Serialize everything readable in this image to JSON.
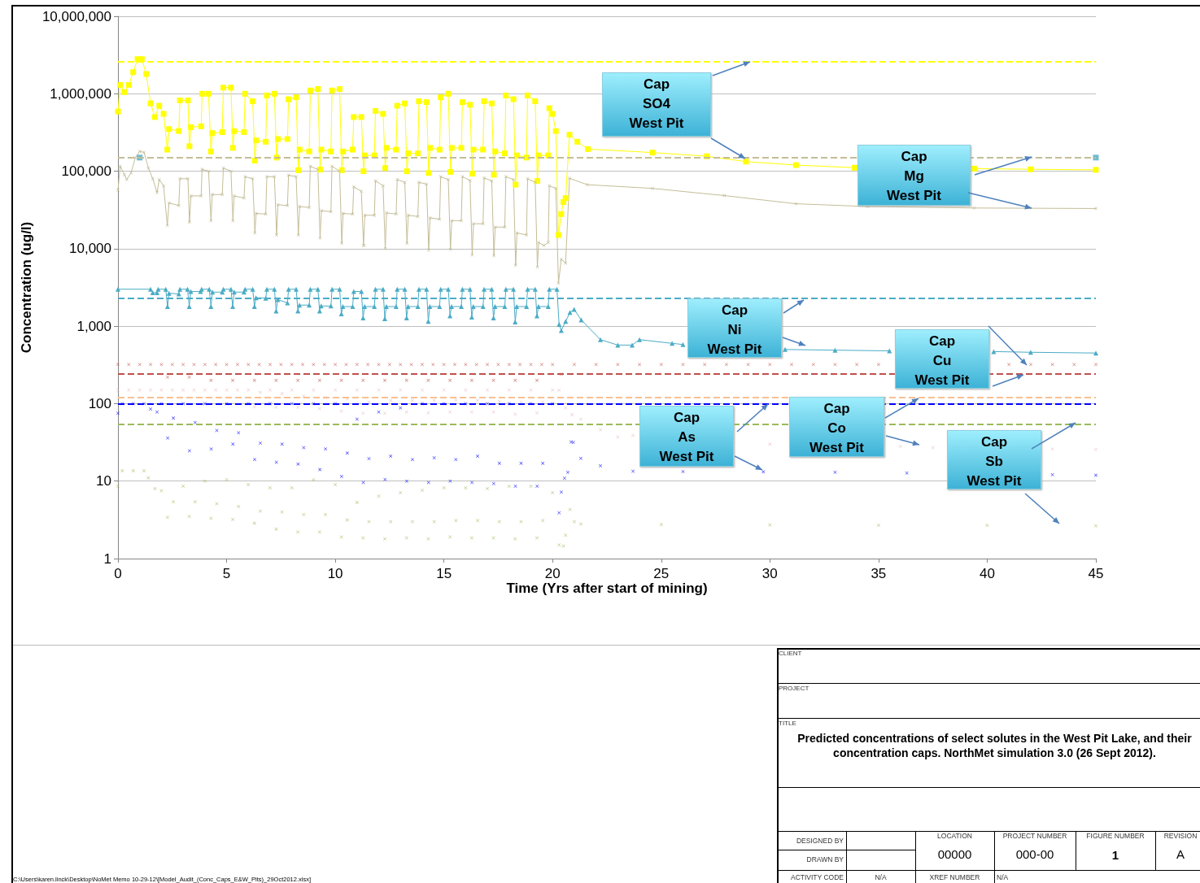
{
  "chart_data": {
    "type": "line",
    "title": "Predicted concentrations of select solutes in the West Pit Lake, and their concentration caps.  NorthMet simulation 3.0 (26 Sept 2012).",
    "xlabel": "Time (Yrs after start of mining)",
    "ylabel": "Concentration (ug/l)",
    "xlim": [
      0,
      45
    ],
    "xticks": [
      0,
      5,
      10,
      15,
      20,
      25,
      30,
      35,
      40,
      45
    ],
    "ylim": [
      1,
      10000000
    ],
    "yticks": [
      1,
      10,
      100,
      {
        "value": 1000,
        "label": "1,000"
      },
      {
        "value": 10000,
        "label": "10,000"
      },
      {
        "value": 100000,
        "label": "100,000"
      },
      {
        "value": 1000000,
        "label": "1,000,000"
      },
      {
        "value": 10000000,
        "label": "10,000,000"
      }
    ],
    "log": true,
    "grid": "y",
    "ref_lines": [
      {
        "axis": "y",
        "value": 2600000,
        "color": "#ffff00",
        "line_style": "dashed"
      },
      {
        "axis": "y",
        "value": 150000,
        "color": "#c4bd97",
        "line_style": "dashed"
      },
      {
        "axis": "y",
        "value": 2300,
        "color": "#4bacc6",
        "line_style": "dashed"
      },
      {
        "axis": "y",
        "value": 240,
        "color": "#c0504d",
        "line_style": "dashed"
      },
      {
        "axis": "y",
        "value": 120,
        "color": "#fac090",
        "line_style": "dashed"
      },
      {
        "axis": "y",
        "value": 100,
        "color": "#0000ff",
        "line_style": "dashed"
      },
      {
        "axis": "y",
        "value": 54,
        "color": "#9bbb59",
        "line_style": "dashed"
      }
    ],
    "annotations": [
      "Cap\nSO4\nWest Pit",
      "Cap\nMg\nWest Pit",
      "Cap\nNi\nWest Pit",
      "Cap\nCu\nWest Pit",
      "Cap\nAs\nWest Pit",
      "Cap\nCo\nWest Pit",
      "Cap\nSb\nWest Pit",
      "CLIENT",
      "PROJECT",
      "TITLE",
      "DESIGNED BY",
      "DRAWN BY",
      "LOCATION",
      "00000",
      "PROJECT NUMBER",
      "000-00",
      "FIGURE NUMBER",
      "1",
      "REVISION",
      "A",
      "ACTIVITY CODE",
      "N/A",
      "XREF NUMBER",
      "N/A",
      "C:\\Users\\karen.linck\\Desktop\\NoMet Memo 10-29-12\\[Model_Audit_(Conc_Caps_E&W_Pits)_29Oct2012.xlsx]"
    ],
    "series": [
      {
        "color": "#ffff00",
        "marker": "square",
        "x": [
          0,
          0.1,
          0.3,
          0.5,
          0.7,
          0.9,
          1.1,
          1.3,
          1.5,
          1.7,
          1.9,
          2.1,
          2.27,
          2.35,
          2.8,
          2.85,
          3.22,
          3.29,
          3.36,
          3.83,
          3.87,
          4.17,
          4.28,
          4.34,
          4.8,
          4.85,
          5.2,
          5.29,
          5.35,
          5.8,
          5.85,
          6.2,
          6.3,
          6.36,
          6.8,
          6.85,
          7.2,
          7.3,
          7.36,
          7.8,
          7.85,
          8.2,
          8.3,
          8.36,
          8.8,
          8.85,
          9.2,
          9.3,
          9.36,
          9.8,
          9.85,
          10.2,
          10.3,
          10.36,
          10.8,
          10.85,
          11.2,
          11.3,
          11.36,
          11.8,
          11.85,
          12.2,
          12.3,
          12.36,
          12.8,
          12.85,
          13.2,
          13.3,
          13.36,
          13.8,
          13.85,
          14.2,
          14.3,
          14.36,
          14.8,
          14.85,
          15.2,
          15.3,
          15.36,
          15.8,
          15.85,
          16.2,
          16.3,
          16.36,
          16.8,
          16.85,
          17.2,
          17.3,
          17.36,
          17.8,
          17.85,
          18.2,
          18.3,
          18.36,
          18.8,
          18.85,
          19.2,
          19.3,
          19.36,
          19.8,
          19.85,
          20,
          20.15,
          20.27,
          20.4,
          20.5,
          20.6,
          20.78,
          21.14,
          21.63,
          24.6,
          27.1,
          28.9,
          31.2,
          33.9,
          36,
          39.4,
          42,
          45
        ],
        "values": [
          590000,
          1300000,
          1050000,
          1300000,
          1900000,
          2800000,
          2800000,
          1800000,
          750000,
          500000,
          700000,
          550000,
          190000,
          350000,
          330000,
          820000,
          820000,
          210000,
          370000,
          380000,
          1000000,
          1000000,
          180000,
          310000,
          320000,
          1200000,
          1200000,
          200000,
          330000,
          320000,
          1000000,
          800000,
          137000,
          250000,
          240000,
          950000,
          1000000,
          150000,
          260000,
          260000,
          850000,
          900000,
          103000,
          190000,
          180000,
          1100000,
          1150000,
          105000,
          190000,
          180000,
          1100000,
          1150000,
          103000,
          180000,
          190000,
          500000,
          500000,
          100000,
          160000,
          160000,
          600000,
          550000,
          110000,
          200000,
          190000,
          700000,
          750000,
          100000,
          170000,
          170000,
          800000,
          780000,
          95000,
          200000,
          190000,
          900000,
          1000000,
          98000,
          200000,
          200000,
          780000,
          720000,
          93000,
          190000,
          190000,
          800000,
          750000,
          90000,
          180000,
          170000,
          950000,
          850000,
          67000,
          160000,
          150000,
          950000,
          800000,
          75000,
          160000,
          160000,
          650000,
          550000,
          330000,
          15000,
          28000,
          40000,
          45000,
          296000,
          240000,
          193000,
          174000,
          156000,
          133000,
          120000,
          111000,
          null,
          108000,
          106000,
          104000
        ]
      },
      {
        "color": "#c4bd97",
        "marker": "cross",
        "x": [
          0,
          0.1,
          0.3,
          0.4,
          0.6,
          0.8,
          1.0,
          1.2,
          1.4,
          1.6,
          1.8,
          1.9,
          2.1,
          2.27,
          2.35,
          2.8,
          2.85,
          3.22,
          3.29,
          3.36,
          3.83,
          3.87,
          4.17,
          4.28,
          4.34,
          4.8,
          4.85,
          5.2,
          5.29,
          5.35,
          5.8,
          5.85,
          6.2,
          6.3,
          6.36,
          6.8,
          6.85,
          7.2,
          7.3,
          7.36,
          7.8,
          7.85,
          8.2,
          8.3,
          8.36,
          8.8,
          8.85,
          9.2,
          9.3,
          9.36,
          9.8,
          9.85,
          10.2,
          10.3,
          10.36,
          10.8,
          10.85,
          11.2,
          11.3,
          11.32,
          11.36,
          11.8,
          11.85,
          12.2,
          12.3,
          12.36,
          12.8,
          12.85,
          13.2,
          13.3,
          13.36,
          13.8,
          13.85,
          14.2,
          14.3,
          14.36,
          14.8,
          14.85,
          15.2,
          15.3,
          15.36,
          15.8,
          15.85,
          16.2,
          16.3,
          16.36,
          16.8,
          16.85,
          17.2,
          17.3,
          17.36,
          17.8,
          17.85,
          18.2,
          18.3,
          18.36,
          18.8,
          18.85,
          19.2,
          19.3,
          19.36,
          19.6,
          19.8,
          19.85,
          20.15,
          20.27,
          20.4,
          20.6,
          20.78,
          21.6,
          24.6,
          27.9,
          31.2,
          34.5,
          39.4,
          45
        ],
        "values": [
          57000,
          116000,
          90000,
          78000,
          95000,
          150000,
          180000,
          175000,
          110000,
          80000,
          53000,
          78000,
          65000,
          20000,
          39000,
          36000,
          80000,
          80000,
          22000,
          48000,
          48000,
          106000,
          100000,
          23000,
          50000,
          50000,
          110000,
          100000,
          23000,
          48000,
          45000,
          85000,
          80000,
          16000,
          28500,
          28000,
          85000,
          85000,
          15000,
          37000,
          36000,
          89000,
          85000,
          15000,
          35000,
          34000,
          116000,
          105000,
          13700,
          31000,
          30000,
          116000,
          100000,
          11700,
          28500,
          28000,
          63000,
          55000,
          11000,
          11000,
          27000,
          27000,
          75000,
          65000,
          10000,
          29000,
          28000,
          78000,
          72000,
          11700,
          27000,
          26000,
          72000,
          68000,
          9600,
          25000,
          24000,
          85000,
          78000,
          9800,
          23000,
          23000,
          85000,
          76000,
          8300,
          21000,
          21000,
          82000,
          75000,
          8100,
          19000,
          19000,
          85000,
          78000,
          6100,
          16000,
          15000,
          80000,
          72000,
          5800,
          12000,
          11000,
          12000,
          65000,
          60000,
          3600,
          7300,
          6500,
          81000,
          67000,
          60000,
          48500,
          38000,
          35000,
          33500,
          33000
        ]
      },
      {
        "color": "#4bacc6",
        "marker": "triangle",
        "x": [
          0,
          1.5,
          1.6,
          1.8,
          1.85,
          2.2,
          2.28,
          2.35,
          2.8,
          2.85,
          3.2,
          3.28,
          3.35,
          3.8,
          3.85,
          4.2,
          4.28,
          4.35,
          4.8,
          4.85,
          5.2,
          5.28,
          5.35,
          5.8,
          5.85,
          6.2,
          6.28,
          6.35,
          6.8,
          6.85,
          7.2,
          7.28,
          7.35,
          7.8,
          7.85,
          8.2,
          8.28,
          8.35,
          8.8,
          8.85,
          9.2,
          9.28,
          9.35,
          9.8,
          9.85,
          10.2,
          10.28,
          10.35,
          10.8,
          10.85,
          11.2,
          11.28,
          11.35,
          11.8,
          11.85,
          12.2,
          12.28,
          12.35,
          12.8,
          12.85,
          13.2,
          13.28,
          13.35,
          13.8,
          13.85,
          14.2,
          14.28,
          14.35,
          14.8,
          14.85,
          15.2,
          15.28,
          15.35,
          15.8,
          15.85,
          16.2,
          16.28,
          16.35,
          16.8,
          16.85,
          17.2,
          17.28,
          17.35,
          17.8,
          17.85,
          18.2,
          18.28,
          18.35,
          18.8,
          18.85,
          19.2,
          19.28,
          19.35,
          19.8,
          19.85,
          20.2,
          20.3,
          20.4,
          20.6,
          20.8,
          20.99,
          21.32,
          22.2,
          23,
          23.66,
          24,
          25.5,
          26,
          28,
          30.7,
          33,
          35.5,
          38,
          40.3,
          42,
          45
        ],
        "values": [
          3000,
          3000,
          2700,
          2700,
          3000,
          3000,
          1790,
          2660,
          2600,
          3000,
          3000,
          1790,
          2800,
          2800,
          3000,
          3000,
          1790,
          2750,
          2750,
          3000,
          3000,
          1790,
          2750,
          2750,
          3000,
          3000,
          1790,
          2330,
          2300,
          3000,
          3000,
          1570,
          2200,
          2000,
          3000,
          3000,
          1570,
          1870,
          1870,
          3000,
          3000,
          1570,
          1820,
          1820,
          3000,
          3000,
          1440,
          1790,
          1790,
          2800,
          2800,
          1280,
          1790,
          1790,
          3000,
          3000,
          1250,
          1790,
          1790,
          3000,
          3000,
          1280,
          1790,
          1790,
          3000,
          3000,
          1150,
          1790,
          1790,
          3000,
          3000,
          1360,
          1790,
          1790,
          3000,
          3000,
          1310,
          1790,
          1790,
          3000,
          3000,
          1280,
          1790,
          1790,
          3000,
          3000,
          1130,
          1790,
          1790,
          3000,
          3000,
          1360,
          1790,
          1790,
          3000,
          3000,
          1050,
          880,
          1150,
          1500,
          1650,
          1200,
          670,
          570,
          570,
          670,
          600,
          580,
          null,
          500,
          490,
          480,
          null,
          470,
          460,
          450
        ]
      },
      {
        "type": "scatter",
        "color": "#c0504d",
        "marker": "cross",
        "x": [
          0,
          0.5,
          1,
          1.5,
          2,
          2.5,
          3,
          3.5,
          4,
          4.5,
          5,
          5.5,
          6,
          6.5,
          7,
          7.5,
          8,
          8.5,
          9,
          9.5,
          10,
          10.5,
          11,
          11.5,
          12,
          12.5,
          13,
          13.5,
          14,
          14.5,
          15,
          15.5,
          16,
          16.5,
          17,
          17.5,
          18,
          18.5,
          19,
          19.5,
          20,
          2.28,
          3.28,
          4.28,
          5.28,
          6.28,
          7.28,
          8.28,
          9.28,
          10.28,
          11.28,
          12.28,
          13.28,
          14.28,
          15.28,
          16.28,
          17.28,
          18.28,
          19.28,
          20.4,
          21,
          22,
          23,
          24,
          25,
          26,
          27,
          28,
          29,
          30,
          31,
          32,
          33,
          34,
          35,
          41,
          42,
          43,
          44,
          45
        ],
        "values": [
          320,
          320,
          320,
          320,
          320,
          320,
          320,
          320,
          320,
          320,
          320,
          320,
          320,
          320,
          320,
          320,
          320,
          320,
          320,
          320,
          320,
          320,
          320,
          320,
          320,
          320,
          320,
          320,
          320,
          320,
          320,
          320,
          320,
          320,
          320,
          320,
          320,
          320,
          320,
          320,
          320,
          220,
          220,
          200,
          200,
          200,
          200,
          200,
          200,
          200,
          200,
          200,
          200,
          200,
          200,
          200,
          200,
          200,
          200,
          240,
          320,
          320,
          320,
          320,
          320,
          320,
          320,
          320,
          320,
          320,
          320,
          320,
          320,
          320,
          320,
          320,
          320,
          320,
          320,
          320
        ]
      },
      {
        "type": "scatter",
        "color": "#e6b9b8",
        "marker": "cross",
        "x": [
          0,
          0.5,
          1,
          1.5,
          2,
          2.5,
          3,
          3.5,
          4,
          4.5,
          5,
          5.5,
          6,
          7,
          8,
          9,
          10,
          11,
          12,
          13,
          14,
          15,
          16,
          17,
          18,
          19,
          20,
          6.55,
          7.55,
          8.55,
          9.55,
          10.55,
          11.55,
          12.55,
          13.55,
          14.55,
          15.55,
          16.55,
          17.55,
          18.55,
          19.55,
          6.28,
          7.28,
          8.28,
          9.28,
          10.28,
          11.28,
          12.28,
          13.28,
          14.28,
          15.28,
          16.28,
          17.28,
          18.28,
          19.28,
          20.3,
          20.6,
          20.9,
          21.3,
          22.2,
          23,
          23.7,
          28.3,
          30,
          36,
          37.5,
          43,
          45
        ],
        "values": [
          150,
          150,
          150,
          150,
          150,
          150,
          150,
          150,
          150,
          150,
          150,
          150,
          150,
          150,
          150,
          150,
          150,
          150,
          150,
          150,
          150,
          150,
          150,
          150,
          150,
          150,
          150,
          140,
          135,
          125,
          120,
          115,
          105,
          110,
          110,
          110,
          112,
          110,
          106,
          105,
          105,
          91,
          90,
          90,
          86,
          80,
          75,
          75,
          78,
          76,
          78,
          78,
          78,
          73,
          76,
          149,
          88,
          72,
          63,
          46,
          37,
          39,
          31,
          30,
          28,
          27,
          26,
          25.6
        ]
      },
      {
        "type": "scatter",
        "color": "#0000ff",
        "marker": "cross",
        "x": [
          0,
          0.2,
          0.7,
          1.2,
          1.5,
          1.8,
          2,
          3,
          4,
          5,
          6,
          7,
          8,
          9,
          10,
          11,
          12,
          13,
          14,
          15,
          16,
          17,
          18,
          19,
          20,
          2.55,
          3.55,
          4.55,
          5.55,
          6.55,
          7.55,
          8.55,
          9.55,
          10.55,
          11.55,
          12.55,
          13.55,
          14.55,
          15.55,
          16.55,
          17.55,
          18.55,
          19.55,
          2.29,
          3.29,
          4.29,
          5.29,
          6.29,
          7.29,
          8.29,
          9.29,
          10.29,
          11.29,
          12.29,
          13.29,
          14.29,
          15.29,
          16.29,
          17.29,
          18.29,
          19.29,
          20.3,
          20.4,
          20.55,
          20.7,
          20.85,
          20.95,
          21.3,
          22.2,
          23.7,
          26,
          29.7,
          33,
          36.3,
          43,
          45
        ],
        "values": [
          75,
          100,
          100,
          100,
          85,
          78,
          100,
          100,
          100,
          100,
          100,
          100,
          100,
          100,
          100,
          63,
          78,
          88,
          100,
          100,
          100,
          100,
          100,
          100,
          100,
          65,
          57,
          45,
          42,
          31,
          30,
          27,
          26,
          23,
          19.5,
          21,
          19,
          20,
          19,
          21,
          17,
          17,
          17,
          36,
          24.6,
          26,
          30,
          19,
          17.5,
          16.6,
          14.1,
          11.5,
          9.6,
          10.5,
          10,
          9.6,
          10,
          9.6,
          9.3,
          8.6,
          8.6,
          3.9,
          7.2,
          10.9,
          13,
          32,
          31.6,
          19.7,
          15.8,
          13.4,
          13.3,
          13.2,
          13,
          12.7,
          12.1,
          11.9
        ]
      },
      {
        "type": "scatter",
        "color": "#9bbb59",
        "marker": "cross",
        "x": [
          0,
          0.2,
          0.7,
          1.2,
          1.4,
          1.7,
          2,
          3,
          4,
          5,
          6,
          7,
          8,
          9,
          10,
          11,
          12,
          13,
          14,
          15,
          16,
          17,
          18,
          19,
          20,
          2.55,
          3.55,
          4.55,
          5.55,
          6.55,
          7.55,
          8.55,
          9.55,
          10.55,
          11.55,
          12.55,
          13.55,
          14.55,
          15.55,
          16.55,
          17.55,
          18.55,
          19.55,
          2.28,
          3.28,
          4.28,
          5.28,
          6.28,
          7.28,
          8.28,
          9.28,
          10.28,
          11.28,
          12.28,
          13.28,
          14.28,
          15.28,
          16.28,
          17.28,
          18.28,
          19.28,
          20.3,
          20.5,
          20.6,
          20.8,
          21,
          21.3,
          25,
          30,
          35,
          40,
          45
        ],
        "values": [
          8.6,
          13.6,
          13.6,
          13.6,
          11,
          8,
          7.5,
          8.6,
          10,
          10.4,
          9,
          8.2,
          8.2,
          10.4,
          9,
          5.3,
          6.4,
          7.1,
          7.6,
          8.2,
          8.2,
          8,
          8.6,
          8.6,
          7.1,
          5.4,
          5.4,
          5.1,
          4.7,
          4.1,
          4,
          3.7,
          3.7,
          3.15,
          3,
          3,
          3,
          3,
          3.1,
          3.1,
          3,
          3,
          3.1,
          3.4,
          3.5,
          3.3,
          3.2,
          2.86,
          2.4,
          2.2,
          2.2,
          1.9,
          1.85,
          1.8,
          1.85,
          1.8,
          1.9,
          1.85,
          1.85,
          1.8,
          1.85,
          1.5,
          1.45,
          2,
          4.3,
          3,
          2.8,
          2.75,
          2.72,
          2.7,
          2.68,
          2.65
        ]
      },
      {
        "type": "scatter",
        "color": "#4bacc6",
        "marker": "square",
        "x": [
          1,
          45
        ],
        "values": [
          150000,
          150000
        ]
      }
    ]
  }
}
